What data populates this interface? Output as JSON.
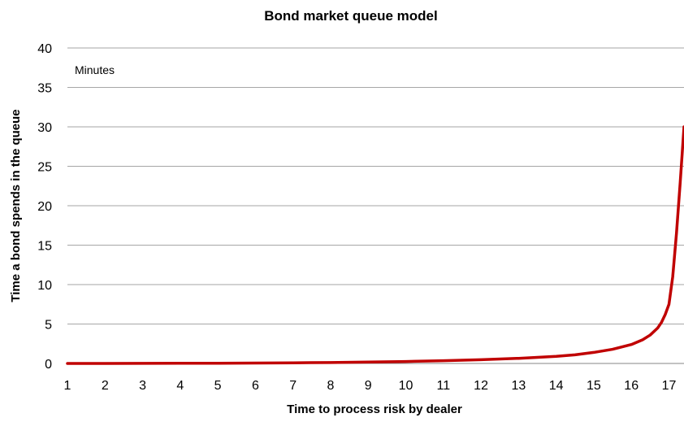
{
  "chart_data": {
    "type": "line",
    "title": "Bond market queue model",
    "xlabel": "Time to process risk by dealer",
    "ylabel": "Time a bond spends in the queue",
    "annotation": "Minutes",
    "xlim": [
      1,
      17.4
    ],
    "ylim": [
      0,
      40
    ],
    "x_ticks": [
      1,
      2,
      3,
      4,
      5,
      6,
      7,
      8,
      9,
      10,
      11,
      12,
      13,
      14,
      15,
      16,
      17
    ],
    "y_ticks": [
      0,
      5,
      10,
      15,
      20,
      25,
      30,
      35,
      40
    ],
    "grid": true,
    "legend": "none",
    "series": [
      {
        "color": "#c00000",
        "x": [
          1,
          2,
          3,
          4,
          5,
          6,
          7,
          8,
          9,
          10,
          11,
          12,
          13,
          14,
          14.5,
          15,
          15.5,
          16,
          16.3,
          16.5,
          16.7,
          16.8,
          16.9,
          17.0,
          17.1,
          17.2,
          17.3,
          17.4
        ],
        "y": [
          0.0,
          0.0,
          0.01,
          0.02,
          0.03,
          0.05,
          0.08,
          0.12,
          0.18,
          0.25,
          0.35,
          0.48,
          0.65,
          0.9,
          1.1,
          1.4,
          1.8,
          2.4,
          3.0,
          3.6,
          4.5,
          5.2,
          6.2,
          7.5,
          11,
          16.5,
          23,
          30
        ]
      }
    ]
  }
}
